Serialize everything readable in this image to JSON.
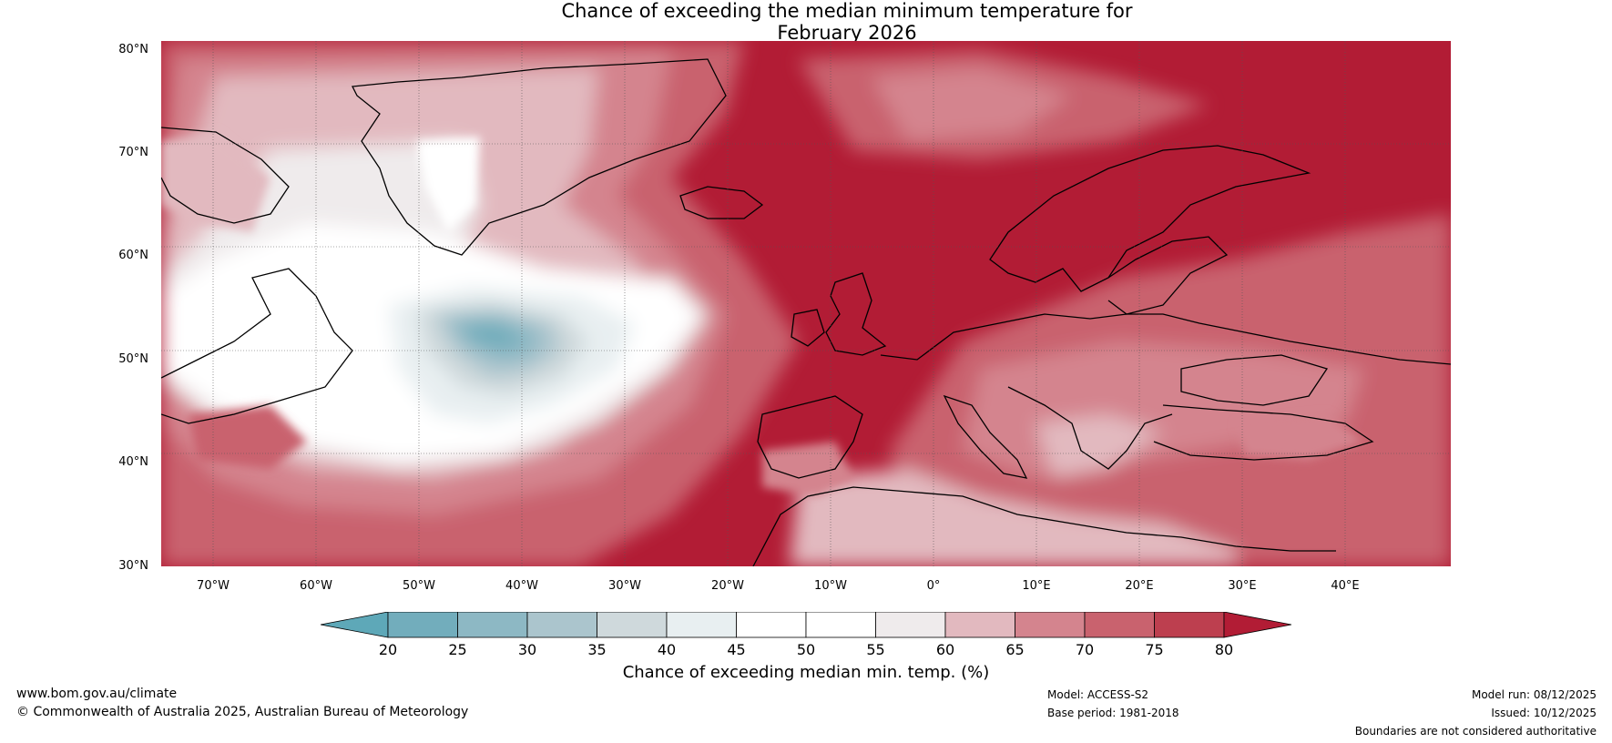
{
  "title": {
    "line1": "Chance of exceeding the median minimum temperature for",
    "line2": "February 2026"
  },
  "map": {
    "lat_labels": [
      "80°N",
      "70°N",
      "60°N",
      "50°N",
      "40°N",
      "30°N"
    ],
    "lon_labels": [
      "70°W",
      "60°W",
      "50°W",
      "40°W",
      "30°W",
      "20°W",
      "10°W",
      "0°",
      "10°E",
      "20°E",
      "30°E",
      "40°E"
    ]
  },
  "colorbar": {
    "ticks": [
      "20",
      "25",
      "30",
      "35",
      "40",
      "45",
      "50",
      "55",
      "60",
      "65",
      "70",
      "75",
      "80"
    ],
    "colors": [
      "#5ea8b8",
      "#72adbc",
      "#8db8c4",
      "#abc5cd",
      "#cfd9dc",
      "#e8eff1",
      "#ffffff",
      "#ffffff",
      "#efebec",
      "#e2b9bf",
      "#d4848e",
      "#c9626e",
      "#bd3f4f",
      "#b21c35"
    ],
    "label": "Chance of exceeding median min. temp. (%)"
  },
  "footer": {
    "url": "www.bom.gov.au/climate",
    "copyright": "© Commonwealth of Australia 2025, Australian Bureau of Meteorology",
    "model": "Model: ACCESS-S2",
    "base_period": "Base period: 1981-2018",
    "model_run": "Model run: 08/12/2025",
    "issued": "Issued: 10/12/2025",
    "disclaimer": "Boundaries are not considered authoritative"
  }
}
